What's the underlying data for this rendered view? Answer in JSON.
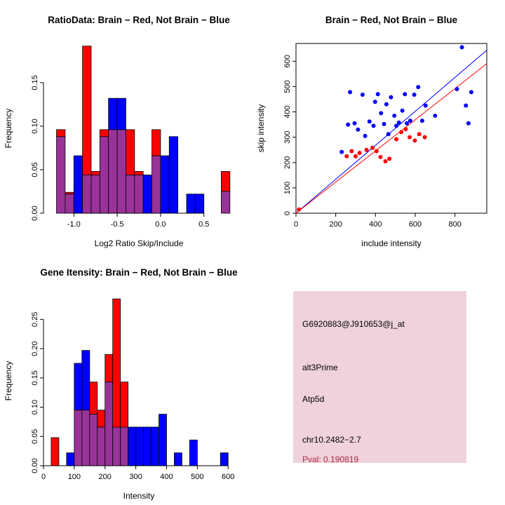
{
  "colors": {
    "red": "#FF0000",
    "blue": "#0000FF",
    "overlap": "#993399",
    "info_bg": "#EFD2DC",
    "pval": "#B02A47",
    "axis": "#000000"
  },
  "chart_data": [
    {
      "id": "ratio_hist",
      "type": "bar",
      "subtype": "overlaid-histogram",
      "title": "RatioData: Brain − Red, Not Brain − Blue",
      "xlabel": "Log2 Ratio Skip/Include",
      "ylabel": "Frequency",
      "bin_start": -1.3,
      "bin_width": 0.1,
      "xlim": [
        -1.35,
        0.85
      ],
      "ylim": [
        0,
        0.195
      ],
      "xticks": [
        -1.0,
        -0.5,
        0.0,
        0.5
      ],
      "xtick_labels": [
        "-1.0",
        "-0.5",
        "0.0",
        "0.5"
      ],
      "yticks": [
        0.0,
        0.05,
        0.1,
        0.15
      ],
      "ytick_labels": [
        "0.00",
        "0.05",
        "0.10",
        "0.15"
      ],
      "series": [
        {
          "name": "Brain (red)",
          "color_key": "red",
          "values": [
            0,
            0.096,
            0.024,
            0,
            0.192,
            0.048,
            0.096,
            0.096,
            0.096,
            0.096,
            0.048,
            0,
            0.096,
            0,
            0,
            0,
            0,
            0,
            0,
            0,
            0.048
          ]
        },
        {
          "name": "Not Brain (blue)",
          "color_key": "blue",
          "values": [
            0,
            0.088,
            0.022,
            0.066,
            0.044,
            0.044,
            0.088,
            0.132,
            0.132,
            0.044,
            0.044,
            0.044,
            0.066,
            0.066,
            0.088,
            0,
            0.022,
            0.022,
            0,
            0,
            0.025
          ]
        }
      ]
    },
    {
      "id": "include_skip_scatter",
      "type": "scatter",
      "title": "Brain − Red, Not Brain − Blue",
      "xlabel": "include intensity",
      "ylabel": "skip intensity",
      "xlim": [
        0,
        960
      ],
      "ylim": [
        0,
        670
      ],
      "xticks": [
        0,
        200,
        400,
        600,
        800
      ],
      "xtick_labels": [
        "0",
        "200",
        "400",
        "600",
        "800"
      ],
      "yticks": [
        0,
        100,
        200,
        300,
        400,
        500,
        600
      ],
      "ytick_labels": [
        "0",
        "100",
        "200",
        "300",
        "400",
        "500",
        "600"
      ],
      "series": [
        {
          "name": "Brain (red)",
          "color_key": "red",
          "points": [
            [
              15,
              15
            ],
            [
              255,
              225
            ],
            [
              280,
              245
            ],
            [
              300,
              225
            ],
            [
              320,
              238
            ],
            [
              355,
              250
            ],
            [
              385,
              258
            ],
            [
              405,
              245
            ],
            [
              425,
              222
            ],
            [
              450,
              205
            ],
            [
              470,
              215
            ],
            [
              505,
              292
            ],
            [
              530,
              320
            ],
            [
              552,
              332
            ],
            [
              572,
              300
            ],
            [
              598,
              287
            ],
            [
              620,
              312
            ],
            [
              648,
              300
            ]
          ]
        },
        {
          "name": "Not Brain (blue)",
          "color_key": "blue",
          "points": [
            [
              230,
              242
            ],
            [
              262,
              350
            ],
            [
              272,
              478
            ],
            [
              295,
              355
            ],
            [
              312,
              330
            ],
            [
              335,
              468
            ],
            [
              348,
              305
            ],
            [
              370,
              362
            ],
            [
              390,
              345
            ],
            [
              398,
              440
            ],
            [
              412,
              470
            ],
            [
              428,
              395
            ],
            [
              443,
              352
            ],
            [
              455,
              430
            ],
            [
              465,
              312
            ],
            [
              478,
              458
            ],
            [
              495,
              385
            ],
            [
              505,
              345
            ],
            [
              518,
              358
            ],
            [
              535,
              405
            ],
            [
              548,
              470
            ],
            [
              558,
              355
            ],
            [
              575,
              365
            ],
            [
              595,
              468
            ],
            [
              615,
              498
            ],
            [
              635,
              365
            ],
            [
              652,
              425
            ],
            [
              700,
              385
            ],
            [
              810,
              490
            ],
            [
              835,
              655
            ],
            [
              855,
              425
            ],
            [
              868,
              355
            ],
            [
              882,
              478
            ]
          ]
        }
      ],
      "lines": [
        {
          "name": "not-brain-fit",
          "color_key": "blue",
          "intercept": 0,
          "slope": 0.67
        },
        {
          "name": "brain-fit",
          "color_key": "red",
          "intercept": 0,
          "slope": 0.615
        }
      ]
    },
    {
      "id": "gene_intensity_hist",
      "type": "bar",
      "subtype": "overlaid-histogram",
      "title": "Gene Itensity: Brain − Red, Not Brain − Blue",
      "xlabel": "Intensity",
      "ylabel": "Frequency",
      "bin_start": 0,
      "bin_width": 25,
      "xlim": [
        0,
        620
      ],
      "ylim": [
        0,
        0.29
      ],
      "xticks": [
        0,
        100,
        200,
        300,
        400,
        500,
        600
      ],
      "xtick_labels": [
        "0",
        "100",
        "200",
        "300",
        "400",
        "500",
        "600"
      ],
      "yticks": [
        0.0,
        0.05,
        0.1,
        0.15,
        0.2,
        0.25
      ],
      "ytick_labels": [
        "0.00",
        "0.05",
        "0.10",
        "0.15",
        "0.20",
        "0.25"
      ],
      "series": [
        {
          "name": "Brain (red)",
          "color_key": "red",
          "values": [
            0,
            0.048,
            0,
            0,
            0.095,
            0.095,
            0.143,
            0.095,
            0.19,
            0.285,
            0.143,
            0,
            0,
            0,
            0,
            0,
            0,
            0,
            0,
            0,
            0,
            0,
            0,
            0
          ]
        },
        {
          "name": "Not Brain (blue)",
          "color_key": "blue",
          "values": [
            0,
            0,
            0,
            0.022,
            0.175,
            0.197,
            0.088,
            0.066,
            0.143,
            0.066,
            0.066,
            0.066,
            0.066,
            0.066,
            0.066,
            0.088,
            0,
            0.022,
            0,
            0.044,
            0,
            0,
            0,
            0.022
          ]
        }
      ]
    }
  ],
  "info_box": {
    "probe_id": "G6920883@J910653@j_at",
    "splice_type": "alt3Prime",
    "gene": "Atp5d",
    "location": "chr10.2482−2.7",
    "pval": "Pval: 0.190819"
  }
}
